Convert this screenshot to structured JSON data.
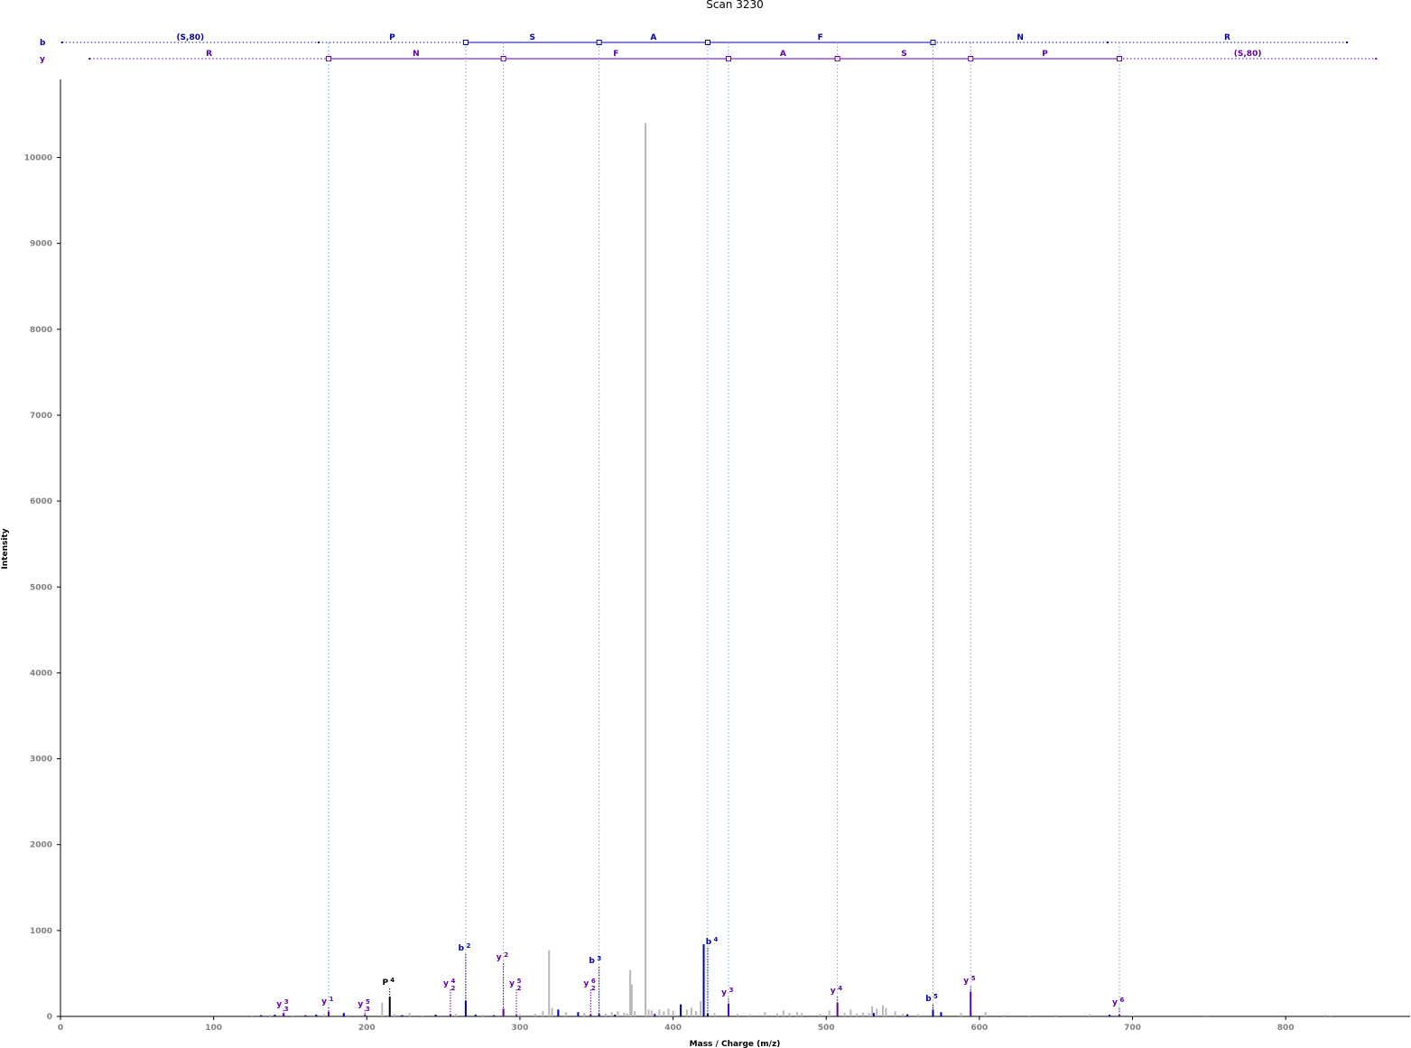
{
  "chart_data": {
    "type": "bar",
    "title": "Scan 3230",
    "xlabel": "Mass / Charge (m/z)",
    "ylabel": "Intensity",
    "xlim": [
      0,
      880
    ],
    "ylim": [
      0,
      10900
    ],
    "xticks": [
      0,
      100,
      200,
      300,
      400,
      500,
      600,
      700,
      800
    ],
    "yticks": [
      0,
      1000,
      2000,
      3000,
      4000,
      5000,
      6000,
      7000,
      8000,
      9000,
      10000
    ],
    "grid": false,
    "colors": {
      "b_ion": "#0000a8",
      "y_ion": "#6000a0",
      "precursor": "#000000",
      "unannotated": "#b8b8b8",
      "match_line": "#88bbee"
    },
    "ladders": {
      "b": {
        "name": "b",
        "start": 1,
        "end": 840,
        "breaks": [
          168.5,
          264.6,
          351.7,
          422.6,
          569.7,
          683.7
        ],
        "matched": [
          264.6,
          351.7,
          422.6,
          569.7
        ],
        "residues": [
          "(S,80)",
          "P",
          "S",
          "A",
          "F",
          "N",
          "R"
        ]
      },
      "y": {
        "name": "y",
        "start": 19,
        "end": 859,
        "breaks": [
          175.1,
          289.2,
          436.2,
          507.3,
          594.3,
          691.4
        ],
        "matched": [
          175.1,
          289.2,
          436.2,
          507.3,
          594.3,
          691.4
        ],
        "residues": [
          "R",
          "N",
          "F",
          "A",
          "S",
          "P",
          "(S,80)"
        ]
      }
    },
    "match_lines": [
      175.1,
      264.6,
      289.2,
      351.7,
      422.6,
      436.2,
      507.3,
      569.7,
      594.3,
      691.4
    ],
    "annotated_peaks": [
      {
        "ion": "y",
        "charge": "3",
        "sub": "3",
        "mz": 145.7,
        "intensity": 40,
        "type": "y"
      },
      {
        "ion": "y",
        "charge": "1",
        "sub": "",
        "mz": 175.1,
        "intensity": 55,
        "type": "y"
      },
      {
        "ion": "y",
        "charge": "5",
        "sub": "3",
        "mz": 198.8,
        "intensity": 20,
        "type": "y"
      },
      {
        "ion": "P",
        "charge": "4",
        "sub": "",
        "mz": 215.0,
        "intensity": 230,
        "type": "p"
      },
      {
        "ion": "y",
        "charge": "4",
        "sub": "2",
        "mz": 254.6,
        "intensity": 25,
        "type": "y"
      },
      {
        "ion": "b",
        "charge": "2",
        "sub": "",
        "mz": 264.6,
        "intensity": 180,
        "type": "b"
      },
      {
        "ion": "y",
        "charge": "2",
        "sub": "",
        "mz": 289.2,
        "intensity": 90,
        "type": "y"
      },
      {
        "ion": "y",
        "charge": "5",
        "sub": "2",
        "mz": 297.7,
        "intensity": 15,
        "type": "y"
      },
      {
        "ion": "y",
        "charge": "6",
        "sub": "2",
        "mz": 346.2,
        "intensity": 25,
        "type": "y"
      },
      {
        "ion": "b",
        "charge": "3",
        "sub": "",
        "mz": 351.7,
        "intensity": 30,
        "type": "b"
      },
      {
        "ion": "b",
        "charge": "4",
        "sub": "",
        "mz": 422.6,
        "intensity": 35,
        "type": "b"
      },
      {
        "ion": "y",
        "charge": "3",
        "sub": "",
        "mz": 436.2,
        "intensity": 150,
        "type": "y"
      },
      {
        "ion": "y",
        "charge": "4",
        "sub": "",
        "mz": 507.3,
        "intensity": 160,
        "type": "y"
      },
      {
        "ion": "b",
        "charge": "5",
        "sub": "",
        "mz": 569.7,
        "intensity": 80,
        "type": "b"
      },
      {
        "ion": "y",
        "charge": "5",
        "sub": "",
        "mz": 594.3,
        "intensity": 290,
        "type": "y"
      },
      {
        "ion": "y",
        "charge": "6",
        "sub": "",
        "mz": 691.4,
        "intensity": 20,
        "type": "y"
      }
    ],
    "colored_peaks": [
      {
        "mz": 131.0,
        "intensity": 15,
        "type": "b"
      },
      {
        "mz": 140.0,
        "intensity": 20,
        "type": "b"
      },
      {
        "mz": 160.0,
        "intensity": 15,
        "type": "y"
      },
      {
        "mz": 167.0,
        "intensity": 20,
        "type": "b"
      },
      {
        "mz": 185.0,
        "intensity": 40,
        "type": "b"
      },
      {
        "mz": 223.0,
        "intensity": 15,
        "type": "b"
      },
      {
        "mz": 245.0,
        "intensity": 20,
        "type": "b"
      },
      {
        "mz": 271.0,
        "intensity": 20,
        "type": "b"
      },
      {
        "mz": 283.0,
        "intensity": 15,
        "type": "y"
      },
      {
        "mz": 325.0,
        "intensity": 80,
        "type": "b"
      },
      {
        "mz": 338.0,
        "intensity": 50,
        "type": "b"
      },
      {
        "mz": 362.0,
        "intensity": 20,
        "type": "b"
      },
      {
        "mz": 388.0,
        "intensity": 30,
        "type": "y"
      },
      {
        "mz": 405.0,
        "intensity": 140,
        "type": "b"
      },
      {
        "mz": 420.0,
        "intensity": 840,
        "type": "b"
      },
      {
        "mz": 531.0,
        "intensity": 40,
        "type": "b"
      },
      {
        "mz": 553.0,
        "intensity": 25,
        "type": "b"
      },
      {
        "mz": 575.0,
        "intensity": 50,
        "type": "b"
      },
      {
        "mz": 685.0,
        "intensity": 20,
        "type": "b"
      }
    ],
    "unannotated_peaks": [
      {
        "mz": 125,
        "intensity": 15
      },
      {
        "mz": 137,
        "intensity": 20
      },
      {
        "mz": 152,
        "intensity": 15
      },
      {
        "mz": 172,
        "intensity": 25
      },
      {
        "mz": 188,
        "intensity": 20
      },
      {
        "mz": 210,
        "intensity": 160
      },
      {
        "mz": 218,
        "intensity": 30
      },
      {
        "mz": 228,
        "intensity": 40
      },
      {
        "mz": 236,
        "intensity": 15
      },
      {
        "mz": 258,
        "intensity": 30
      },
      {
        "mz": 276,
        "intensity": 20
      },
      {
        "mz": 300,
        "intensity": 25
      },
      {
        "mz": 310,
        "intensity": 30
      },
      {
        "mz": 315,
        "intensity": 60
      },
      {
        "mz": 319,
        "intensity": 770
      },
      {
        "mz": 321,
        "intensity": 100
      },
      {
        "mz": 330,
        "intensity": 50
      },
      {
        "mz": 342,
        "intensity": 40
      },
      {
        "mz": 356,
        "intensity": 35
      },
      {
        "mz": 360,
        "intensity": 50
      },
      {
        "mz": 364,
        "intensity": 60
      },
      {
        "mz": 368,
        "intensity": 45
      },
      {
        "mz": 370,
        "intensity": 35
      },
      {
        "mz": 372,
        "intensity": 540
      },
      {
        "mz": 373,
        "intensity": 370
      },
      {
        "mz": 375,
        "intensity": 60
      },
      {
        "mz": 382,
        "intensity": 10400
      },
      {
        "mz": 384,
        "intensity": 80
      },
      {
        "mz": 386,
        "intensity": 70
      },
      {
        "mz": 391,
        "intensity": 80
      },
      {
        "mz": 394,
        "intensity": 60
      },
      {
        "mz": 397,
        "intensity": 90
      },
      {
        "mz": 400,
        "intensity": 70
      },
      {
        "mz": 409,
        "intensity": 80
      },
      {
        "mz": 412,
        "intensity": 100
      },
      {
        "mz": 415,
        "intensity": 60
      },
      {
        "mz": 418,
        "intensity": 180
      },
      {
        "mz": 427,
        "intensity": 40
      },
      {
        "mz": 442,
        "intensity": 30
      },
      {
        "mz": 450,
        "intensity": 25
      },
      {
        "mz": 460,
        "intensity": 50
      },
      {
        "mz": 468,
        "intensity": 35
      },
      {
        "mz": 472,
        "intensity": 70
      },
      {
        "mz": 476,
        "intensity": 40
      },
      {
        "mz": 481,
        "intensity": 50
      },
      {
        "mz": 484,
        "intensity": 40
      },
      {
        "mz": 496,
        "intensity": 30
      },
      {
        "mz": 502,
        "intensity": 70
      },
      {
        "mz": 512,
        "intensity": 40
      },
      {
        "mz": 516,
        "intensity": 80
      },
      {
        "mz": 520,
        "intensity": 35
      },
      {
        "mz": 524,
        "intensity": 45
      },
      {
        "mz": 528,
        "intensity": 40
      },
      {
        "mz": 530,
        "intensity": 120
      },
      {
        "mz": 533,
        "intensity": 90
      },
      {
        "mz": 537,
        "intensity": 130
      },
      {
        "mz": 539,
        "intensity": 100
      },
      {
        "mz": 545,
        "intensity": 60
      },
      {
        "mz": 550,
        "intensity": 30
      },
      {
        "mz": 560,
        "intensity": 25
      },
      {
        "mz": 588,
        "intensity": 40
      },
      {
        "mz": 604,
        "intensity": 50
      },
      {
        "mz": 616,
        "intensity": 20
      },
      {
        "mz": 632,
        "intensity": 15
      },
      {
        "mz": 650,
        "intensity": 20
      },
      {
        "mz": 672,
        "intensity": 25
      },
      {
        "mz": 700,
        "intensity": 15
      },
      {
        "mz": 748,
        "intensity": 15
      },
      {
        "mz": 826,
        "intensity": 20
      },
      {
        "mz": 829,
        "intensity": 15
      }
    ]
  }
}
